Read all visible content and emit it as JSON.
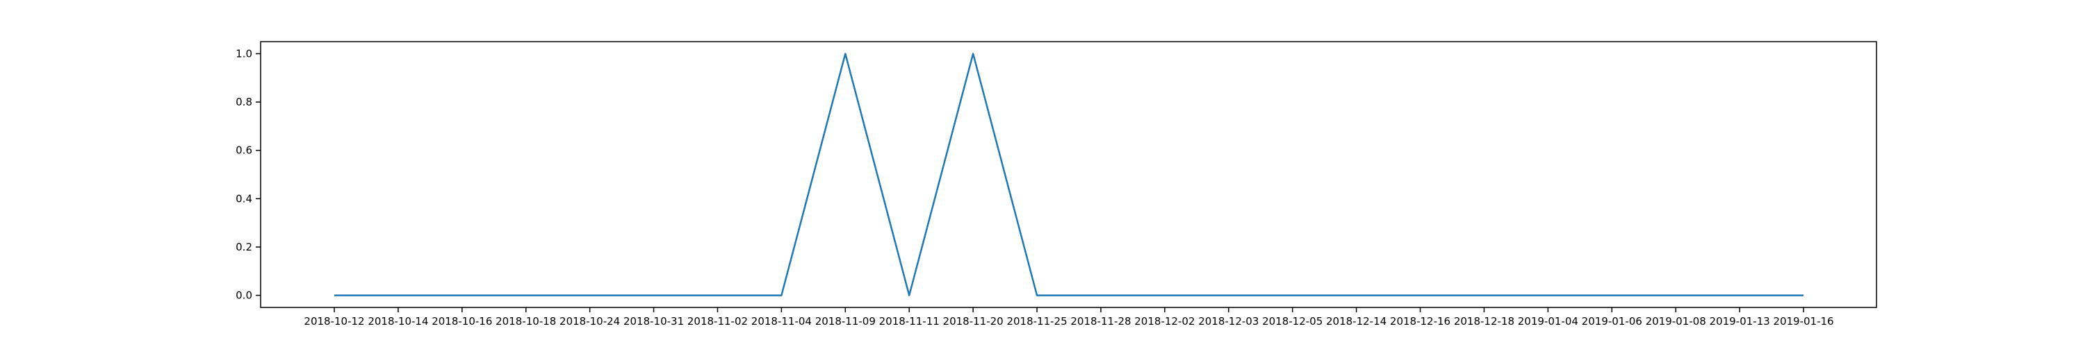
{
  "chart_data": {
    "type": "line",
    "title": "",
    "xlabel": "",
    "ylabel": "",
    "categories": [
      "2018-10-12",
      "2018-10-14",
      "2018-10-16",
      "2018-10-18",
      "2018-10-24",
      "2018-10-31",
      "2018-11-02",
      "2018-11-04",
      "2018-11-09",
      "2018-11-11",
      "2018-11-20",
      "2018-11-25",
      "2018-11-28",
      "2018-12-02",
      "2018-12-03",
      "2018-12-05",
      "2018-12-14",
      "2018-12-16",
      "2018-12-18",
      "2019-01-04",
      "2019-01-06",
      "2019-01-08",
      "2019-01-13",
      "2019-01-16"
    ],
    "series": [
      {
        "color": "#1f77b4",
        "values": [
          0,
          0,
          0,
          0,
          0,
          0,
          0,
          0,
          1,
          0,
          1,
          0,
          0,
          0,
          0,
          0,
          0,
          0,
          0,
          0,
          0,
          0,
          0,
          0
        ]
      }
    ],
    "ylim": [
      -0.05,
      1.05
    ],
    "yticks": [
      0.0,
      0.2,
      0.4,
      0.6,
      0.8,
      1.0
    ],
    "ytick_labels": [
      "0.0",
      "0.2",
      "0.4",
      "0.6",
      "0.8",
      "1.0"
    ],
    "grid": false,
    "legend": "none"
  }
}
